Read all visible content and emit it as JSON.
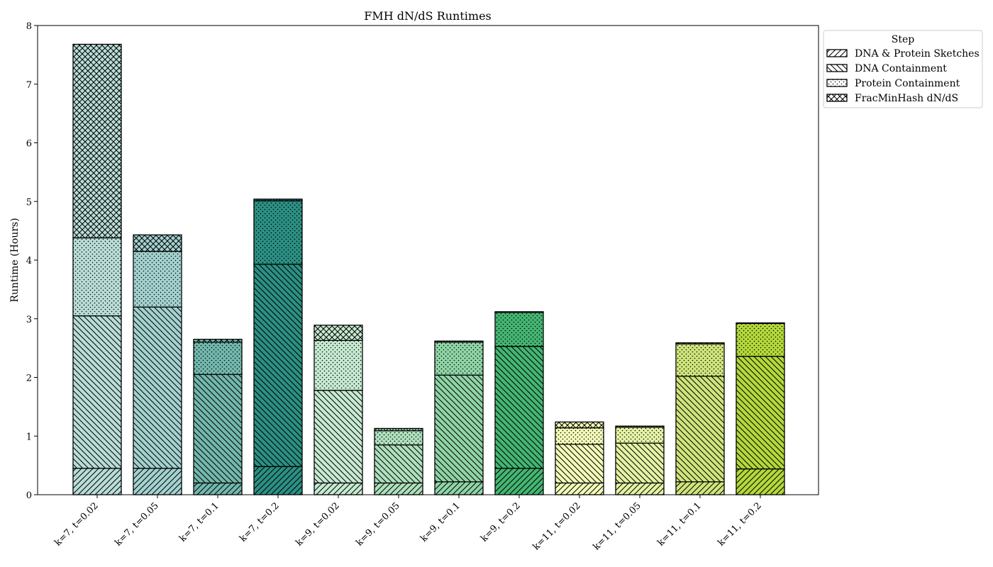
{
  "chart_data": {
    "type": "bar",
    "stacked": true,
    "title": "FMH dN/dS Runtimes",
    "xlabel": "",
    "ylabel": "Runtime (Hours)",
    "ylim": [
      0,
      8
    ],
    "yticks": [
      0,
      1,
      2,
      3,
      4,
      5,
      6,
      7,
      8
    ],
    "grid": false,
    "legend": {
      "title": "Step",
      "placement": "outside-top-right"
    },
    "categories": [
      "k=7, t=0.02",
      "k=7, t=0.05",
      "k=7, t=0.1",
      "k=7, t=0.2",
      "k=9, t=0.02",
      "k=9, t=0.05",
      "k=9, t=0.1",
      "k=9, t=0.2",
      "k=11, t=0.02",
      "k=11, t=0.05",
      "k=11, t=0.1",
      "k=11, t=0.2"
    ],
    "colors": [
      "#b9ddd8",
      "#a3d2cf",
      "#72b8ad",
      "#2b9083",
      "#c6ead2",
      "#aee0bc",
      "#8fd5a6",
      "#44b672",
      "#f3fab8",
      "#e4f3a4",
      "#cfe57c",
      "#b4d93a"
    ],
    "series": [
      {
        "name": "DNA & Protein Sketches",
        "pattern": "diag-up",
        "values": [
          0.45,
          0.45,
          0.2,
          0.48,
          0.2,
          0.2,
          0.22,
          0.45,
          0.2,
          0.2,
          0.22,
          0.44
        ]
      },
      {
        "name": "DNA Containment",
        "pattern": "diag-down",
        "values": [
          2.6,
          2.75,
          1.85,
          3.45,
          1.58,
          0.65,
          1.82,
          2.08,
          0.66,
          0.68,
          1.8,
          1.92
        ]
      },
      {
        "name": "Protein Containment",
        "pattern": "dots",
        "values": [
          1.33,
          0.95,
          0.55,
          1.08,
          0.85,
          0.24,
          0.56,
          0.58,
          0.28,
          0.27,
          0.55,
          0.56
        ]
      },
      {
        "name": "FracMinHash dN/dS",
        "pattern": "crosshatch",
        "values": [
          3.3,
          0.28,
          0.05,
          0.03,
          0.26,
          0.04,
          0.02,
          0.01,
          0.1,
          0.02,
          0.02,
          0.01
        ]
      }
    ]
  }
}
